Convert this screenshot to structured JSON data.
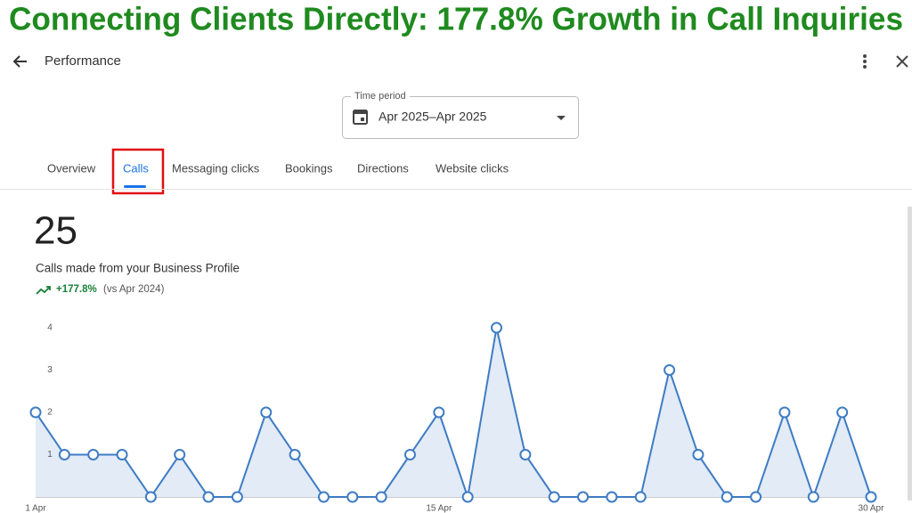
{
  "header": {
    "title": "Connecting Clients Directly: 177.8% Growth in Call Inquiries"
  },
  "nav": {
    "title": "Performance"
  },
  "time_period": {
    "label": "Time period",
    "value": "Apr 2025–Apr 2025"
  },
  "tabs": [
    "Overview",
    "Calls",
    "Messaging clicks",
    "Bookings",
    "Directions",
    "Website clicks"
  ],
  "metric": {
    "value": 25,
    "description": "Calls made from your Business Profile",
    "change": "+177.8%",
    "comparison": "(vs Apr 2024)"
  },
  "chart_data": {
    "type": "area",
    "categories": [
      "1 Apr",
      null,
      null,
      null,
      null,
      null,
      null,
      null,
      null,
      null,
      null,
      null,
      null,
      null,
      "15 Apr",
      null,
      null,
      null,
      null,
      null,
      null,
      null,
      null,
      null,
      null,
      null,
      null,
      null,
      null,
      "30 Apr"
    ],
    "values": [
      2,
      1,
      1,
      1,
      0,
      1,
      0,
      0,
      2,
      1,
      0,
      0,
      0,
      1,
      2,
      0,
      4,
      1,
      0,
      0,
      0,
      0,
      3,
      1,
      0,
      0,
      2,
      0,
      2,
      0
    ],
    "color": "#3f7cc4",
    "ylim": [
      0,
      4
    ],
    "yticks": [
      1,
      2,
      3,
      4
    ]
  }
}
